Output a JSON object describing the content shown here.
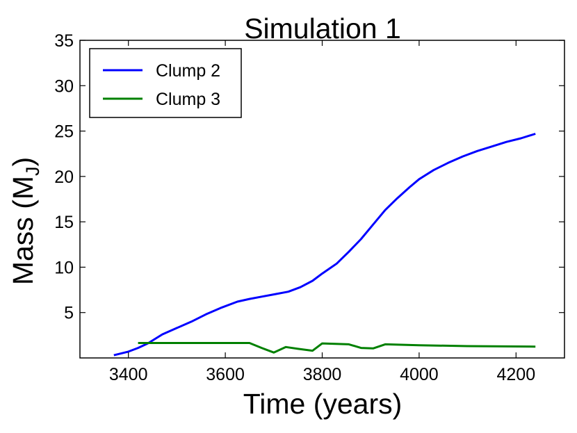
{
  "chart_data": {
    "type": "line",
    "title": "Simulation 1",
    "xlabel": "Time (years)",
    "ylabel_main": "Mass (M",
    "ylabel_sub": "J",
    "ylabel_close": ")",
    "xlim": [
      3300,
      4300
    ],
    "ylim": [
      0,
      35
    ],
    "xticks": [
      3400,
      3600,
      3800,
      4000,
      4200
    ],
    "yticks": [
      5,
      10,
      15,
      20,
      25,
      30,
      35
    ],
    "grid": false,
    "legend_position": "top-left",
    "series": [
      {
        "name": "Clump 2",
        "color": "#0000ff",
        "x": [
          3370,
          3400,
          3420,
          3440,
          3470,
          3500,
          3530,
          3560,
          3590,
          3625,
          3650,
          3680,
          3700,
          3730,
          3755,
          3780,
          3800,
          3830,
          3855,
          3880,
          3905,
          3930,
          3955,
          3980,
          4000,
          4030,
          4060,
          4090,
          4120,
          4150,
          4180,
          4210,
          4240
        ],
        "y": [
          0.3,
          0.7,
          1.1,
          1.6,
          2.6,
          3.3,
          4.0,
          4.8,
          5.5,
          6.2,
          6.5,
          6.8,
          7.0,
          7.3,
          7.8,
          8.5,
          9.3,
          10.4,
          11.7,
          13.1,
          14.7,
          16.3,
          17.6,
          18.8,
          19.7,
          20.7,
          21.5,
          22.2,
          22.8,
          23.3,
          23.8,
          24.2,
          24.7
        ]
      },
      {
        "name": "Clump 3",
        "color": "#008000",
        "x": [
          3420,
          3650,
          3675,
          3700,
          3725,
          3750,
          3780,
          3800,
          3855,
          3880,
          3905,
          3930,
          4000,
          4100,
          4240
        ],
        "y": [
          1.65,
          1.65,
          1.1,
          0.6,
          1.2,
          1.0,
          0.8,
          1.6,
          1.5,
          1.1,
          1.05,
          1.5,
          1.4,
          1.3,
          1.25
        ]
      }
    ]
  }
}
